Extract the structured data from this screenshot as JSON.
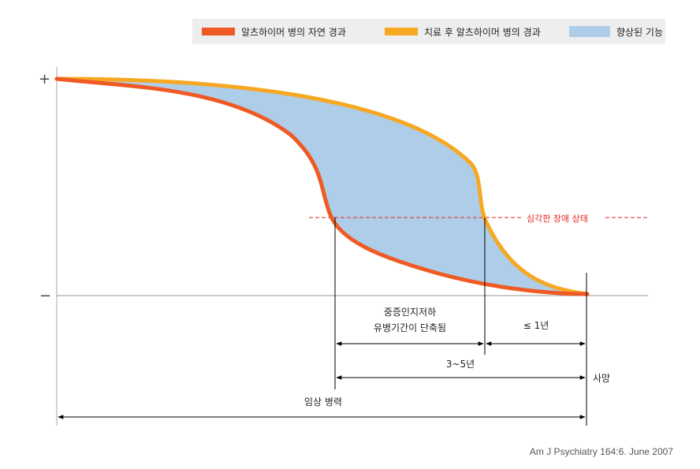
{
  "legend": {
    "natural_course": "알츠하이머 병의 자연 경과",
    "treated_course": "치료 후 알츠하이머 병의 경과",
    "improved_function": "향상된 기능"
  },
  "colors": {
    "natural": "#ef5a24",
    "treated": "#f7a823",
    "improved": "#aecde9",
    "threshold": "#e52620",
    "axis": "#aaaaaa"
  },
  "axis": {
    "plus": "+",
    "minus": "−"
  },
  "annotations": {
    "threshold": "심각한 장애 상태",
    "shortened_1": "중증인지저하",
    "shortened_2": "유병기간이 단축됨",
    "last_year": "≤ 1년",
    "three_five_years": "3~5년",
    "death": "사망",
    "clinical_course": "임상 병력"
  },
  "source": "Am J Psychiatry 164:6. June 2007",
  "chart_data": {
    "type": "area",
    "title": "",
    "series": [
      {
        "name": "알츠하이머 병의 자연 경과"
      },
      {
        "name": "치료 후 알츠하이머 병의 경과"
      },
      {
        "name": "향상된 기능"
      }
    ]
  }
}
